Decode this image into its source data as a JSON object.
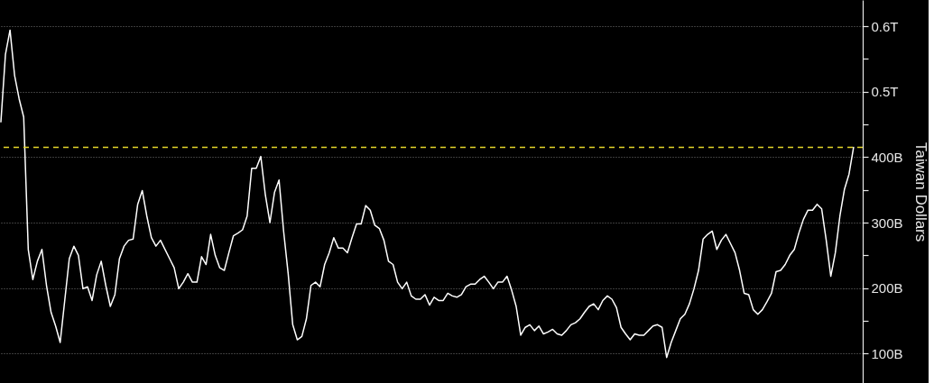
{
  "chart_data": {
    "type": "line",
    "ylabel": "Taiwan Dollars",
    "categories": [
      null,
      null,
      null,
      null,
      null,
      null,
      null,
      null,
      null,
      null,
      null,
      null,
      null,
      null,
      null,
      null,
      null,
      null,
      null,
      null,
      null,
      null,
      null,
      null,
      null,
      null,
      null,
      null,
      null,
      null,
      null,
      null,
      null,
      null,
      null,
      null,
      null,
      null,
      null,
      null,
      null,
      null,
      null,
      null,
      null,
      null,
      null,
      null,
      null,
      null,
      null,
      null,
      null,
      null,
      null,
      null,
      null,
      null,
      null,
      null,
      null,
      null,
      null,
      null,
      null,
      null,
      null,
      null,
      null,
      null,
      null,
      null,
      null,
      null,
      null,
      null,
      null,
      null,
      null,
      null,
      null,
      null,
      null,
      null,
      null,
      null,
      null,
      null,
      null,
      null,
      null,
      null,
      null,
      null,
      null,
      null,
      null,
      null,
      null,
      null,
      null,
      null,
      null,
      null,
      null,
      null,
      null,
      null,
      null,
      null,
      null,
      null,
      null,
      null,
      null,
      null,
      null,
      null,
      null,
      null,
      null,
      null,
      null,
      null,
      null,
      null,
      null,
      null,
      null,
      null,
      null,
      null,
      null,
      null,
      null,
      null,
      null,
      null,
      null,
      null,
      null,
      null,
      null,
      null,
      null,
      null,
      null,
      null,
      null,
      null,
      null,
      null,
      null,
      null,
      null,
      null,
      null,
      null,
      null,
      null,
      null,
      null,
      null,
      null,
      null,
      null,
      null,
      null,
      null,
      null,
      null,
      null,
      null,
      null,
      null,
      null,
      null,
      null,
      null,
      null,
      null,
      null,
      null,
      null,
      null,
      null,
      null,
      null
    ],
    "values": [
      454000000000.0,
      557000000000.0,
      594000000000.0,
      525000000000.0,
      489000000000.0,
      461000000000.0,
      259000000000.0,
      213000000000.0,
      241000000000.0,
      259000000000.0,
      204000000000.0,
      163000000000.0,
      142000000000.0,
      117000000000.0,
      181000000000.0,
      245000000000.0,
      264000000000.0,
      250000000000.0,
      199000000000.0,
      202000000000.0,
      181000000000.0,
      220000000000.0,
      241000000000.0,
      204000000000.0,
      172000000000.0,
      190000000000.0,
      245000000000.0,
      264000000000.0,
      273000000000.0,
      275000000000.0,
      328000000000.0,
      349000000000.0,
      310000000000.0,
      277000000000.0,
      264000000000.0,
      273000000000.0,
      259000000000.0,
      245000000000.0,
      231000000000.0,
      199000000000.0,
      209000000000.0,
      222000000000.0,
      209000000000.0,
      209000000000.0,
      248000000000.0,
      236000000000.0,
      282000000000.0,
      250000000000.0,
      231000000000.0,
      227000000000.0,
      254000000000.0,
      280000000000.0,
      284000000000.0,
      289000000000.0,
      310000000000.0,
      383000000000.0,
      383000000000.0,
      401000000000.0,
      342000000000.0,
      300000000000.0,
      346000000000.0,
      365000000000.0,
      287000000000.0,
      222000000000.0,
      144000000000.0,
      121000000000.0,
      126000000000.0,
      153000000000.0,
      204000000000.0,
      209000000000.0,
      202000000000.0,
      236000000000.0,
      254000000000.0,
      277000000000.0,
      261000000000.0,
      261000000000.0,
      254000000000.0,
      277000000000.0,
      298000000000.0,
      298000000000.0,
      326000000000.0,
      319000000000.0,
      296000000000.0,
      291000000000.0,
      273000000000.0,
      241000000000.0,
      236000000000.0,
      209000000000.0,
      199000000000.0,
      209000000000.0,
      188000000000.0,
      183000000000.0,
      183000000000.0,
      190000000000.0,
      174000000000.0,
      186000000000.0,
      181000000000.0,
      181000000000.0,
      192000000000.0,
      188000000000.0,
      186000000000.0,
      190000000000.0,
      202000000000.0,
      206000000000.0,
      206000000000.0,
      213000000000.0,
      218000000000.0,
      209000000000.0,
      199000000000.0,
      209000000000.0,
      209000000000.0,
      218000000000.0,
      197000000000.0,
      172000000000.0,
      128000000000.0,
      140000000000.0,
      144000000000.0,
      135000000000.0,
      142000000000.0,
      130000000000.0,
      133000000000.0,
      137000000000.0,
      130000000000.0,
      128000000000.0,
      135000000000.0,
      144000000000.0,
      147000000000.0,
      153000000000.0,
      163000000000.0,
      172000000000.0,
      176000000000.0,
      167000000000.0,
      181000000000.0,
      188000000000.0,
      183000000000.0,
      170000000000.0,
      140000000000.0,
      130000000000.0,
      121000000000.0,
      130000000000.0,
      128000000000.0,
      128000000000.0,
      135000000000.0,
      142000000000.0,
      144000000000.0,
      140000000000.0,
      94000000000.0,
      117000000000.0,
      135000000000.0,
      153000000000.0,
      160000000000.0,
      176000000000.0,
      199000000000.0,
      227000000000.0,
      275000000000.0,
      282000000000.0,
      287000000000.0,
      259000000000.0,
      273000000000.0,
      282000000000.0,
      268000000000.0,
      254000000000.0,
      227000000000.0,
      192000000000.0,
      190000000000.0,
      167000000000.0,
      160000000000.0,
      167000000000.0,
      179000000000.0,
      192000000000.0,
      225000000000.0,
      227000000000.0,
      236000000000.0,
      250000000000.0,
      259000000000.0,
      284000000000.0,
      305000000000.0,
      319000000000.0,
      319000000000.0,
      328000000000.0,
      321000000000.0,
      273000000000.0,
      218000000000.0,
      254000000000.0,
      310000000000.0,
      351000000000.0,
      374000000000.0,
      415000000000.0
    ],
    "color": "#ffffff",
    "line_style": "solid",
    "ylim": [
      55000000000.0,
      640000000000.0
    ],
    "yticks": [
      {
        "value": 100000000000.0,
        "label": "100B"
      },
      {
        "value": 150000000000.0,
        "label": null
      },
      {
        "value": 200000000000.0,
        "label": "200B"
      },
      {
        "value": 250000000000.0,
        "label": null
      },
      {
        "value": 300000000000.0,
        "label": "300B"
      },
      {
        "value": 350000000000.0,
        "label": null
      },
      {
        "value": 400000000000.0,
        "label": "400B"
      },
      {
        "value": 450000000000.0,
        "label": null
      },
      {
        "value": 500000000000.0,
        "label": "0.5T"
      },
      {
        "value": 550000000000.0,
        "label": null
      },
      {
        "value": 600000000000.0,
        "label": "0.6T"
      }
    ],
    "ref_lines": [
      {
        "axis": "y",
        "value": 415000000000.0,
        "color": "#e6d62a",
        "line_style": "dashed"
      }
    ],
    "grid": "y",
    "tick_labels": "y"
  }
}
